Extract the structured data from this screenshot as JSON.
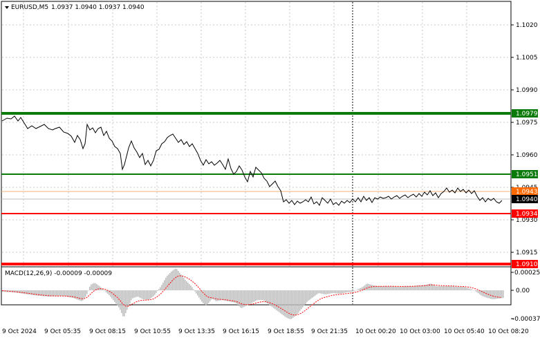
{
  "header": {
    "symbol": "EURUSD,M5",
    "ohlc": "1.0937 1.0940 1.0937 1.0940"
  },
  "price_axis": {
    "ticks": [
      "1.1020",
      "1.1005",
      "1.0990",
      "1.0975",
      "1.0960",
      "1.0945",
      "1.0930",
      "1.0915"
    ],
    "levels": [
      {
        "label": "1.0979",
        "color": "#0a7a0a",
        "kind": "resistance"
      },
      {
        "label": "1.0951",
        "color": "#0a7a0a",
        "kind": "target"
      },
      {
        "label": "1.0943",
        "color": "#ff6a00",
        "kind": "bid"
      },
      {
        "label": "1.0940",
        "color": "#000000",
        "kind": "current"
      },
      {
        "label": "1.0934",
        "color": "#ff0000",
        "kind": "support"
      },
      {
        "label": "1.0910",
        "color": "#ff0000",
        "kind": "target"
      }
    ]
  },
  "macd": {
    "label": "MACD(12,26,9) -0.00009 -0.00009",
    "ticks": [
      "0.00025",
      "0.00",
      "-0.00037"
    ]
  },
  "time_axis": {
    "labels": [
      "9 Oct 2024",
      "9 Oct 05:35",
      "9 Oct 08:15",
      "9 Oct 10:55",
      "9 Oct 13:35",
      "9 Oct 16:15",
      "9 Oct 18:55",
      "9 Oct 21:35",
      "10 Oct 00:20",
      "10 Oct 03:00",
      "10 Oct 05:40",
      "10 Oct 08:20"
    ]
  },
  "colors": {
    "price_line": "#000000",
    "histogram": "#c0c0c0",
    "signal": "#ff0000",
    "grid": "#c8c8c8"
  }
}
